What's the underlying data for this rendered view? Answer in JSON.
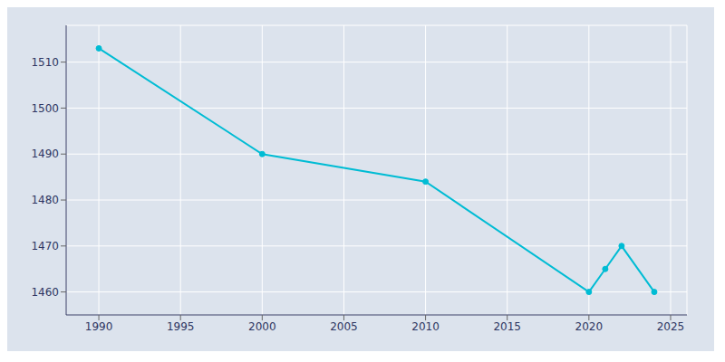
{
  "chart_data": {
    "type": "line",
    "x": [
      1990,
      2000,
      2010,
      2020,
      2021,
      2022,
      2024
    ],
    "values": [
      1513,
      1490,
      1484,
      1460,
      1465,
      1470,
      1460
    ],
    "color": "#00BCD4",
    "marker": "circle",
    "xlim": [
      1988,
      2026
    ],
    "ylim": [
      1455,
      1518
    ],
    "xticks": [
      1990,
      1995,
      2000,
      2005,
      2010,
      2015,
      2020,
      2025
    ],
    "yticks": [
      1460,
      1470,
      1480,
      1490,
      1500,
      1510
    ],
    "grid": true
  }
}
